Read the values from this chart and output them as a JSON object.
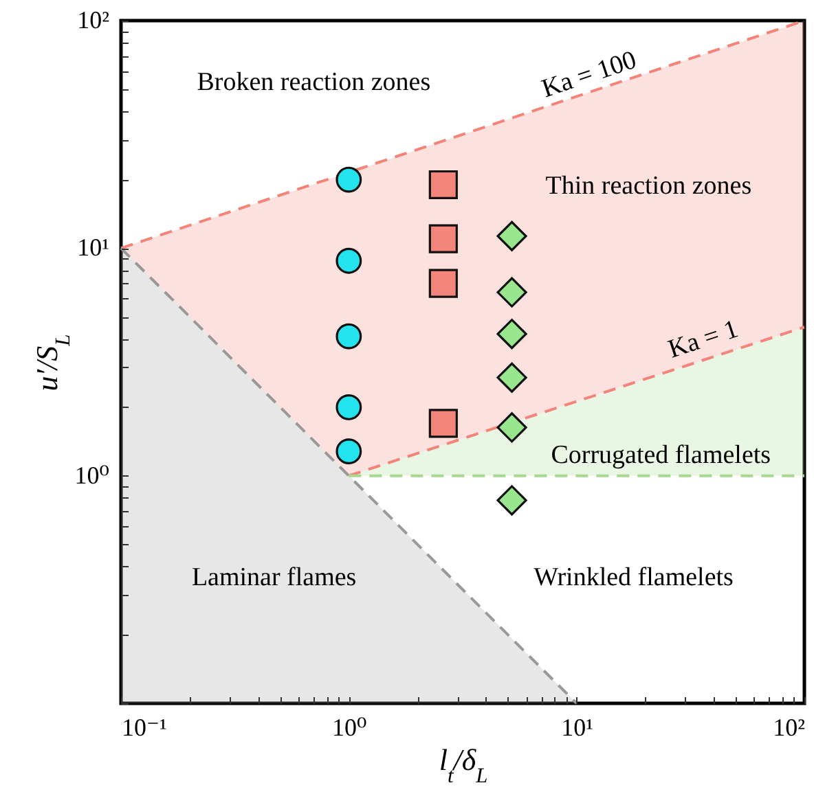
{
  "chart_data": {
    "type": "scatter",
    "xlabel": "l$_{t}$/δ$_{L}$",
    "ylabel": "u′/S$_{L}$",
    "log": "xy",
    "grid": false,
    "xlim": [
      0.1,
      100
    ],
    "ylim": [
      0.1,
      100
    ],
    "xticks": [
      {
        "value": 0.1,
        "label": "10⁻¹"
      },
      {
        "value": 0.2,
        "label": null
      },
      {
        "value": 0.3,
        "label": null
      },
      {
        "value": 0.4,
        "label": null
      },
      {
        "value": 0.5,
        "label": null
      },
      {
        "value": 0.6,
        "label": null
      },
      {
        "value": 0.7,
        "label": null
      },
      {
        "value": 0.8,
        "label": null
      },
      {
        "value": 0.9,
        "label": null
      },
      {
        "value": 1,
        "label": "10⁰"
      },
      {
        "value": 2,
        "label": null
      },
      {
        "value": 3,
        "label": null
      },
      {
        "value": 4,
        "label": null
      },
      {
        "value": 5,
        "label": null
      },
      {
        "value": 6,
        "label": null
      },
      {
        "value": 7,
        "label": null
      },
      {
        "value": 8,
        "label": null
      },
      {
        "value": 9,
        "label": null
      },
      {
        "value": 10,
        "label": "10¹"
      },
      {
        "value": 20,
        "label": null
      },
      {
        "value": 30,
        "label": null
      },
      {
        "value": 40,
        "label": null
      },
      {
        "value": 50,
        "label": null
      },
      {
        "value": 60,
        "label": null
      },
      {
        "value": 70,
        "label": null
      },
      {
        "value": 80,
        "label": null
      },
      {
        "value": 90,
        "label": null
      },
      {
        "value": 100,
        "label": "10²"
      }
    ],
    "yticks": [
      {
        "value": 0.1,
        "label": null
      },
      {
        "value": 0.2,
        "label": null
      },
      {
        "value": 0.3,
        "label": null
      },
      {
        "value": 0.4,
        "label": null
      },
      {
        "value": 0.5,
        "label": null
      },
      {
        "value": 0.6,
        "label": null
      },
      {
        "value": 0.7,
        "label": null
      },
      {
        "value": 0.8,
        "label": null
      },
      {
        "value": 0.9,
        "label": null
      },
      {
        "value": 1,
        "label": "10⁰"
      },
      {
        "value": 2,
        "label": null
      },
      {
        "value": 3,
        "label": null
      },
      {
        "value": 4,
        "label": null
      },
      {
        "value": 5,
        "label": null
      },
      {
        "value": 6,
        "label": null
      },
      {
        "value": 7,
        "label": null
      },
      {
        "value": 8,
        "label": null
      },
      {
        "value": 9,
        "label": null
      },
      {
        "value": 10,
        "label": "10¹"
      },
      {
        "value": 20,
        "label": null
      },
      {
        "value": 30,
        "label": null
      },
      {
        "value": 40,
        "label": null
      },
      {
        "value": 50,
        "label": null
      },
      {
        "value": 60,
        "label": null
      },
      {
        "value": 70,
        "label": null
      },
      {
        "value": 80,
        "label": null
      },
      {
        "value": 90,
        "label": null
      },
      {
        "value": 100,
        "label": "10²"
      }
    ],
    "series": [
      {
        "type": "line",
        "color": "#f4837a",
        "line_style": "dashed",
        "marker": "none",
        "x": [
          0.1,
          100
        ],
        "values": [
          10,
          100
        ]
      },
      {
        "type": "line",
        "color": "#f4837a",
        "line_style": "dashed",
        "marker": "none",
        "x": [
          0.1,
          1,
          100
        ],
        "values": [
          null,
          1,
          4.5
        ],
        "lower": [
          10,
          1,
          4.5
        ],
        "upper": [
          10,
          21.5,
          100
        ]
      },
      {
        "type": "line",
        "color": "#999999",
        "line_style": "dashed",
        "marker": "none",
        "x": [
          0.1,
          10
        ],
        "values": [
          10,
          0.1
        ],
        "lower": [
          0.1,
          0.1
        ],
        "upper": [
          10,
          0.1
        ]
      },
      {
        "type": "line",
        "color": "#a8d890",
        "line_style": "dashed",
        "marker": "none",
        "x": [
          1,
          100
        ],
        "values": [
          1,
          1
        ],
        "lower": [
          1,
          1
        ],
        "upper": [
          1,
          4.5
        ]
      },
      {
        "color": "#22e3ee",
        "marker": "circle",
        "x": [
          1,
          1,
          1,
          1,
          1
        ],
        "values": [
          20,
          8.8,
          4.1,
          2.0,
          1.28
        ]
      },
      {
        "color": "#f4857a",
        "marker": "square",
        "x": [
          2.6,
          2.6,
          2.6,
          2.6
        ],
        "values": [
          19,
          11,
          7,
          1.7
        ]
      },
      {
        "color": "#98e68e",
        "marker": "diamond",
        "x": [
          5.2,
          5.2,
          5.2,
          5.2,
          5.2,
          5.2
        ],
        "values": [
          11.3,
          6.4,
          4.2,
          2.7,
          1.63,
          0.78
        ]
      }
    ],
    "annotations": [
      "Broken reaction zones",
      "Thin reaction zones",
      "Corrugated flamelets",
      "Laminar flames",
      "Wrinkled flamelets",
      {
        "text": "Ka = 100",
        "x": 12,
        "y": 49
      },
      {
        "text": "Ka = 1",
        "x": 38,
        "y": 3.36
      }
    ]
  }
}
